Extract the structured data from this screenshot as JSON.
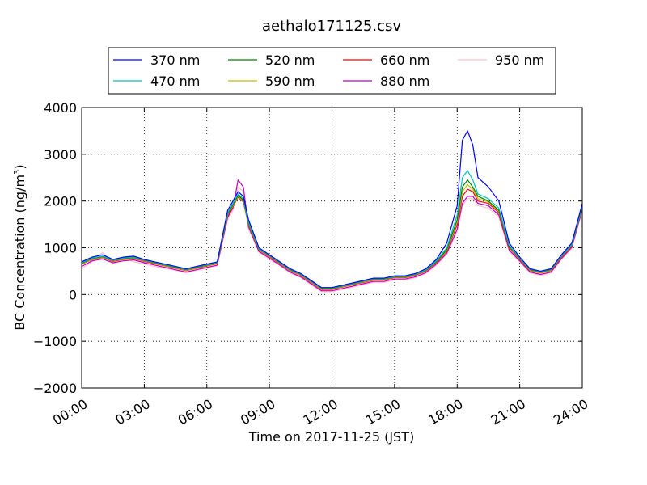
{
  "chart_data": {
    "type": "line",
    "title": "aethalo171125.csv",
    "xlabel": "Time on 2017-11-25 (JST)",
    "ylabel_main": "BC Concentration (ng/m",
    "ylabel_sup": "3",
    "ylabel_tail": ")",
    "xlim": [
      0,
      24
    ],
    "ylim": [
      -2000,
      4000
    ],
    "x_ticks": [
      0,
      3,
      6,
      9,
      12,
      15,
      18,
      21,
      24
    ],
    "x_tick_labels": [
      "00:00",
      "03:00",
      "06:00",
      "09:00",
      "12:00",
      "15:00",
      "18:00",
      "21:00",
      "24:00"
    ],
    "y_ticks": [
      -2000,
      -1000,
      0,
      1000,
      2000,
      3000,
      4000
    ],
    "y_tick_labels": [
      "−2000",
      "−1000",
      "0",
      "1000",
      "2000",
      "3000",
      "4000"
    ],
    "grid": true,
    "legend_position": "top-center",
    "x": [
      0,
      0.5,
      1,
      1.5,
      2,
      2.5,
      3,
      3.5,
      4,
      4.5,
      5,
      5.5,
      6,
      6.5,
      7,
      7.25,
      7.5,
      7.75,
      8,
      8.5,
      9,
      9.5,
      10,
      10.5,
      11,
      11.5,
      12,
      12.5,
      13,
      13.5,
      14,
      14.5,
      15,
      15.5,
      16,
      16.5,
      17,
      17.5,
      18,
      18.25,
      18.5,
      18.75,
      19,
      19.5,
      20,
      20.5,
      21,
      21.5,
      22,
      22.5,
      23,
      23.5,
      24
    ],
    "series": [
      {
        "name": "370 nm",
        "color": "#0000ff",
        "values": [
          700,
          800,
          850,
          750,
          800,
          820,
          750,
          700,
          650,
          600,
          550,
          600,
          650,
          700,
          1800,
          2000,
          2200,
          2100,
          1600,
          1000,
          850,
          700,
          550,
          450,
          300,
          150,
          150,
          200,
          250,
          300,
          350,
          350,
          400,
          400,
          450,
          550,
          750,
          1100,
          1900,
          3300,
          3500,
          3200,
          2500,
          2300,
          2000,
          1100,
          800,
          550,
          500,
          550,
          850,
          1100,
          1950
        ]
      },
      {
        "name": "470 nm",
        "color": "#00bfbf",
        "values": [
          680,
          780,
          820,
          740,
          780,
          800,
          740,
          690,
          640,
          590,
          540,
          590,
          640,
          690,
          1750,
          1950,
          2150,
          2050,
          1550,
          980,
          840,
          690,
          540,
          440,
          290,
          140,
          140,
          190,
          240,
          290,
          340,
          340,
          390,
          390,
          440,
          530,
          720,
          1000,
          1700,
          2500,
          2650,
          2450,
          2150,
          2050,
          1850,
          1050,
          780,
          540,
          490,
          540,
          830,
          1070,
          1900
        ]
      },
      {
        "name": "520 nm",
        "color": "#008000",
        "values": [
          670,
          770,
          810,
          730,
          770,
          790,
          730,
          680,
          630,
          580,
          530,
          580,
          630,
          680,
          1720,
          1920,
          2120,
          2020,
          1520,
          970,
          830,
          680,
          530,
          430,
          280,
          130,
          130,
          180,
          230,
          280,
          330,
          330,
          380,
          380,
          430,
          520,
          700,
          960,
          1600,
          2300,
          2450,
          2300,
          2100,
          2000,
          1800,
          1030,
          770,
          530,
          480,
          530,
          820,
          1060,
          1880
        ]
      },
      {
        "name": "590 nm",
        "color": "#bfbf00",
        "values": [
          660,
          760,
          800,
          720,
          760,
          780,
          720,
          670,
          620,
          570,
          520,
          570,
          620,
          670,
          1700,
          1900,
          2100,
          2000,
          1500,
          960,
          820,
          670,
          520,
          420,
          270,
          120,
          120,
          170,
          220,
          270,
          320,
          320,
          370,
          370,
          420,
          510,
          690,
          940,
          1550,
          2200,
          2350,
          2250,
          2050,
          1980,
          1780,
          1020,
          760,
          520,
          470,
          520,
          810,
          1050,
          1870
        ]
      },
      {
        "name": "660 nm",
        "color": "#ff0000",
        "values": [
          650,
          750,
          790,
          710,
          750,
          770,
          710,
          660,
          610,
          560,
          510,
          560,
          610,
          660,
          1680,
          1880,
          2080,
          1980,
          1480,
          950,
          810,
          660,
          510,
          410,
          260,
          110,
          110,
          160,
          210,
          260,
          310,
          310,
          360,
          360,
          410,
          500,
          680,
          920,
          1500,
          2100,
          2250,
          2200,
          2000,
          1950,
          1750,
          1000,
          750,
          510,
          460,
          510,
          800,
          1040,
          1860
        ]
      },
      {
        "name": "880 nm",
        "color": "#bf00bf",
        "values": [
          600,
          720,
          760,
          680,
          720,
          740,
          680,
          630,
          580,
          530,
          480,
          530,
          580,
          630,
          1650,
          1850,
          2450,
          2300,
          1450,
          920,
          780,
          630,
          480,
          380,
          230,
          80,
          80,
          130,
          180,
          230,
          280,
          280,
          330,
          330,
          380,
          470,
          650,
          880,
          1400,
          1950,
          2100,
          2100,
          1950,
          1900,
          1700,
          950,
          720,
          480,
          430,
          480,
          770,
          1010,
          1820
        ]
      },
      {
        "name": "950 nm",
        "color": "#ffc0cb",
        "values": [
          550,
          700,
          900,
          650,
          800,
          700,
          650,
          600,
          560,
          520,
          460,
          520,
          560,
          620,
          1600,
          1800,
          2300,
          2200,
          1400,
          900,
          760,
          620,
          460,
          360,
          210,
          60,
          60,
          110,
          160,
          210,
          260,
          260,
          310,
          310,
          360,
          450,
          630,
          860,
          1350,
          1900,
          2050,
          2050,
          1900,
          1850,
          1650,
          920,
          700,
          460,
          410,
          460,
          750,
          990,
          1800
        ]
      }
    ]
  }
}
